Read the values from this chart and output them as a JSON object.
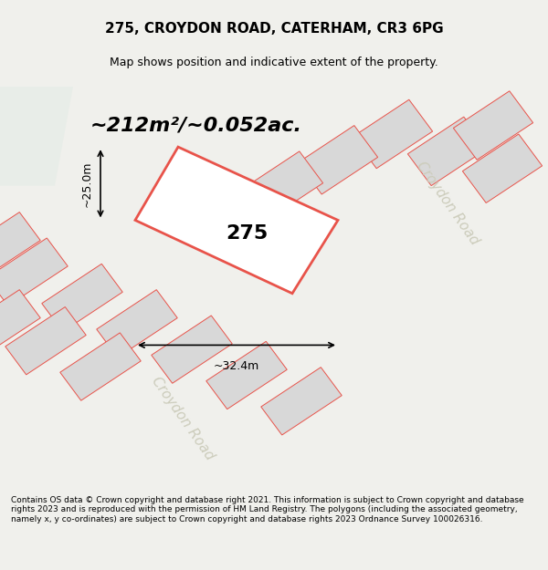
{
  "title_line1": "275, CROYDON ROAD, CATERHAM, CR3 6PG",
  "title_line2": "Map shows position and indicative extent of the property.",
  "area_text": "~212m²/~0.052ac.",
  "property_number": "275",
  "dim_width": "~32.4m",
  "dim_height": "~25.0m",
  "footer_text": "Contains OS data © Crown copyright and database right 2021. This information is subject to Crown copyright and database rights 2023 and is reproduced with the permission of HM Land Registry. The polygons (including the associated geometry, namely x, y co-ordinates) are subject to Crown copyright and database rights 2023 Ordnance Survey 100026316.",
  "bg_color": "#f0f0ec",
  "map_bg": "#f5f5f0",
  "property_fill": "white",
  "property_edge": "#e8534a",
  "neighbor_fill": "#d8d8d8",
  "neighbor_edge": "#e8534a",
  "road_label1": "Croydon Road",
  "road_label2": "Croydon Road",
  "fig_width": 6.0,
  "fig_height": 6.25
}
